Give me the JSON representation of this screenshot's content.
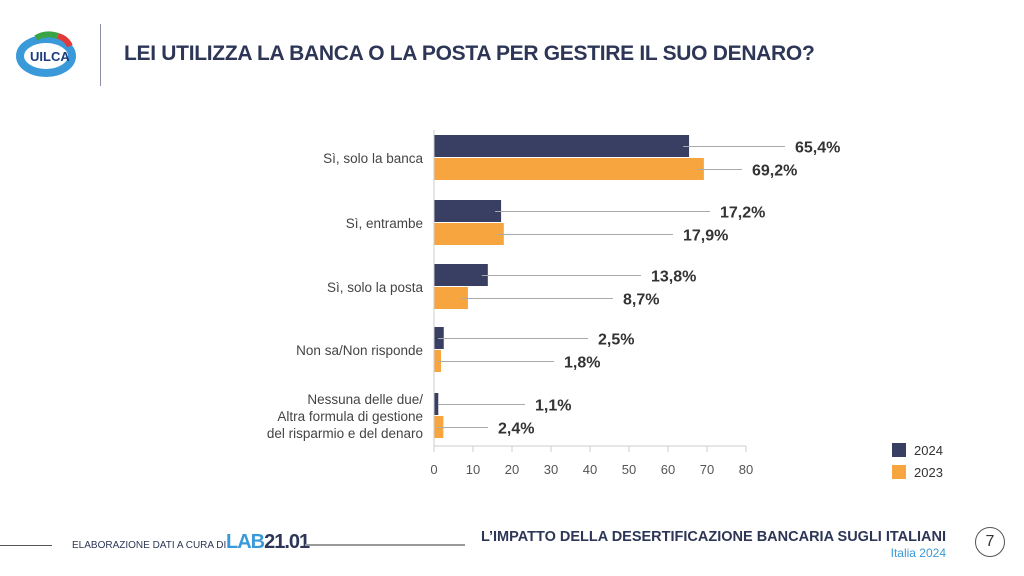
{
  "header": {
    "logo_text": "UILCA",
    "title": "LEI UTILIZZA LA BANCA O LA POSTA PER GESTIRE IL SUO DENARO?"
  },
  "footer": {
    "credit": "ELABORAZIONE DATI A CURA DI",
    "lab_part1": "LAB",
    "lab_part2": "21.01",
    "report_title": "L’IMPATTO DELLA DESERTIFICAZIONE BANCARIA SUGLI ITALIANI",
    "report_subtitle": "Italia 2024",
    "page_number": "7"
  },
  "colors": {
    "2024": "#383f63",
    "2023": "#f6a53f",
    "title": "#2d3656",
    "accent": "#3a9ad9"
  },
  "chart_data": {
    "type": "bar",
    "orientation": "horizontal",
    "categories": [
      [
        "Sì, solo la banca"
      ],
      [
        "Sì, entrambe"
      ],
      [
        "Sì, solo la posta"
      ],
      [
        "Non sa/Non risponde"
      ],
      [
        "Nessuna delle due/",
        "Altra formula di gestione",
        "del risparmio e del denaro"
      ]
    ],
    "series": [
      {
        "name": "2024",
        "values": [
          65.4,
          17.2,
          13.8,
          2.5,
          1.1
        ],
        "labels": [
          "65,4%",
          "17,2%",
          "13,8%",
          "2,5%",
          "1,1%"
        ]
      },
      {
        "name": "2023",
        "values": [
          69.2,
          17.9,
          8.7,
          1.8,
          2.4
        ],
        "labels": [
          "69,2%",
          "17,9%",
          "8,7%",
          "1,8%",
          "2,4%"
        ]
      }
    ],
    "xlim": [
      0,
      80
    ],
    "xticks": [
      "0",
      "10",
      "20",
      "30",
      "40",
      "50",
      "60",
      "70",
      "80"
    ],
    "grid": false,
    "legend_position": "bottom-right"
  }
}
